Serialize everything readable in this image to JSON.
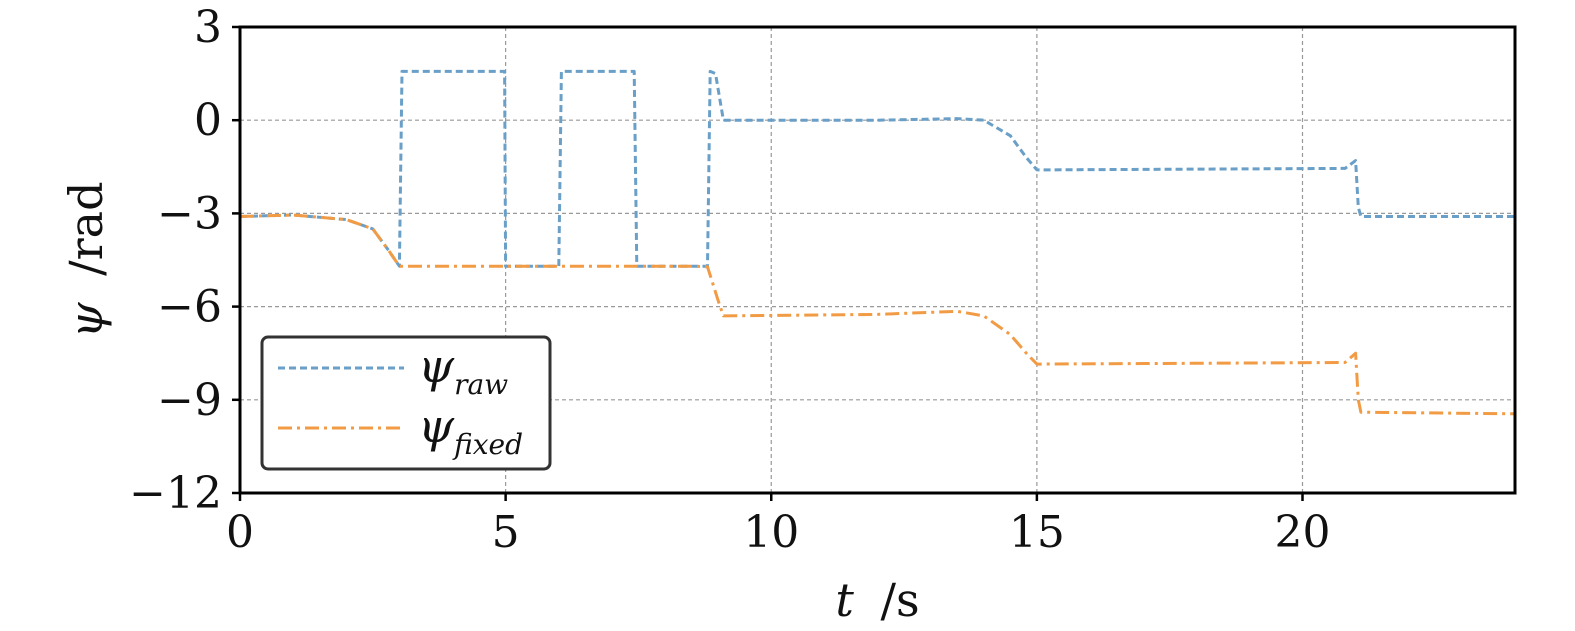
{
  "chart_data": {
    "type": "line",
    "xlabel_var": "t",
    "xlabel_unit": "/s",
    "ylabel_var": "ψ",
    "ylabel_unit": "/rad",
    "xlim": [
      0,
      24
    ],
    "ylim": [
      -12,
      3
    ],
    "x_ticks": [
      0,
      5,
      10,
      15,
      20
    ],
    "y_ticks": [
      3,
      0,
      -3,
      -6,
      -9,
      -12
    ],
    "y_tick_labels": [
      "3",
      "0",
      "−3",
      "−6",
      "−9",
      "−12"
    ],
    "grid": true,
    "legend_position": "lower-left",
    "series": [
      {
        "name": "ψ",
        "name_sub": "raw",
        "color": "#6a9fc7",
        "style": "dashed",
        "x": [
          0,
          1,
          2,
          2.5,
          2.8,
          3.0,
          3.05,
          3.1,
          4.98,
          5.0,
          5.02,
          6.0,
          6.05,
          7.42,
          7.47,
          8.8,
          8.85,
          8.95,
          9.1,
          12.0,
          13.5,
          14.0,
          14.5,
          14.8,
          15.0,
          20.8,
          21.0,
          21.05,
          21.1,
          24
        ],
        "y": [
          -3.1,
          -3.05,
          -3.2,
          -3.5,
          -4.2,
          -4.7,
          1.57,
          1.57,
          1.57,
          -4.7,
          -4.7,
          -4.7,
          1.57,
          1.57,
          -4.7,
          -4.7,
          1.57,
          1.5,
          0.0,
          0.0,
          0.05,
          0.0,
          -0.5,
          -1.2,
          -1.6,
          -1.55,
          -1.3,
          -2.8,
          -3.1,
          -3.1
        ]
      },
      {
        "name": "ψ",
        "name_sub": "fixed",
        "color": "#f29b45",
        "style": "dashdot",
        "x": [
          0,
          1,
          2,
          2.5,
          2.8,
          3.0,
          3.1,
          8.5,
          8.8,
          9.0,
          9.1,
          12.0,
          13.5,
          14.0,
          14.5,
          14.8,
          15.0,
          20.8,
          21.0,
          21.05,
          21.1,
          24
        ],
        "y": [
          -3.1,
          -3.05,
          -3.2,
          -3.5,
          -4.2,
          -4.7,
          -4.7,
          -4.7,
          -4.72,
          -5.8,
          -6.3,
          -6.25,
          -6.15,
          -6.3,
          -6.9,
          -7.5,
          -7.85,
          -7.8,
          -7.5,
          -9.0,
          -9.4,
          -9.45
        ]
      }
    ]
  }
}
